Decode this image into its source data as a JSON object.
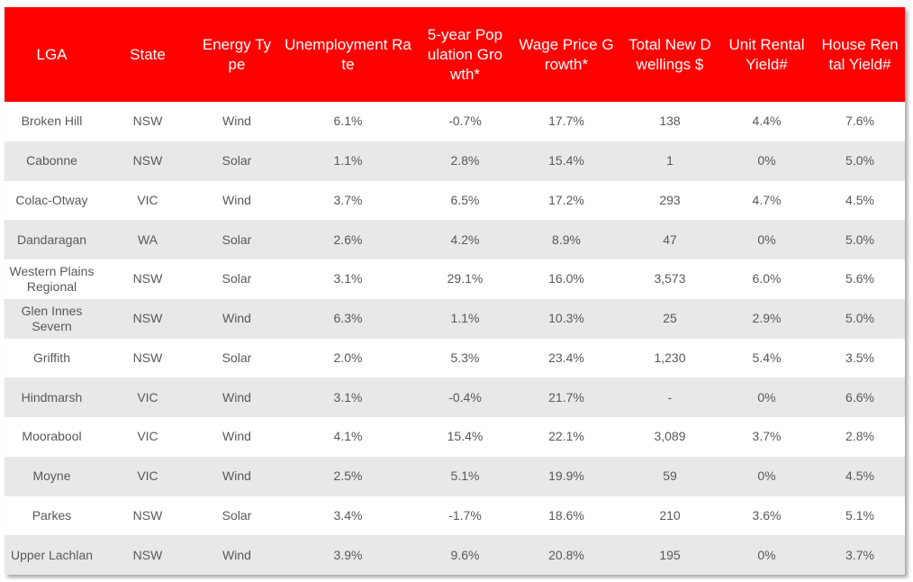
{
  "table": {
    "header": [
      "LGA",
      "State",
      "Energy Type",
      "Unemployment Rate",
      "5-year Population Growth*",
      "Wage Price Growth*",
      "Total New Dwellings $",
      "Unit Rental Yield#",
      "House Rental Yield#"
    ],
    "rows": [
      [
        "Broken Hill",
        "NSW",
        "Wind",
        "6.1%",
        "-0.7%",
        "17.7%",
        "138",
        "4.4%",
        "7.6%"
      ],
      [
        "Cabonne",
        "NSW",
        "Solar",
        "1.1%",
        "2.8%",
        "15.4%",
        "1",
        "0%",
        "5.0%"
      ],
      [
        "Colac-Otway",
        "VIC",
        "Wind",
        "3.7%",
        "6.5%",
        "17.2%",
        "293",
        "4.7%",
        "4.5%"
      ],
      [
        "Dandaragan",
        "WA",
        "Solar",
        "2.6%",
        "4.2%",
        "8.9%",
        "47",
        "0%",
        "5.0%"
      ],
      [
        "Western Plains Regional",
        "NSW",
        "Solar",
        "3.1%",
        "29.1%",
        "16.0%",
        "3,573",
        "6.0%",
        "5.6%"
      ],
      [
        "Glen Innes Severn",
        "NSW",
        "Wind",
        "6.3%",
        "1.1%",
        "10.3%",
        "25",
        "2.9%",
        "5.0%"
      ],
      [
        "Griffith",
        "NSW",
        "Solar",
        "2.0%",
        "5.3%",
        "23.4%",
        "1,230",
        "5.4%",
        "3.5%"
      ],
      [
        "Hindmarsh",
        "VIC",
        "Wind",
        "3.1%",
        "-0.4%",
        "21.7%",
        "-",
        "0%",
        "6.6%"
      ],
      [
        "Moorabool",
        "VIC",
        "Wind",
        "4.1%",
        "15.4%",
        "22.1%",
        "3,089",
        "3.7%",
        "2.8%"
      ],
      [
        "Moyne",
        "VIC",
        "Wind",
        "2.5%",
        "5.1%",
        "19.9%",
        "59",
        "0%",
        "4.5%"
      ],
      [
        "Parkes",
        "NSW",
        "Solar",
        "3.4%",
        "-1.7%",
        "18.6%",
        "210",
        "3.6%",
        "5.1%"
      ],
      [
        "Upper Lachlan",
        "NSW",
        "Wind",
        "3.9%",
        "9.6%",
        "20.8%",
        "195",
        "0%",
        "3.7%"
      ]
    ]
  }
}
